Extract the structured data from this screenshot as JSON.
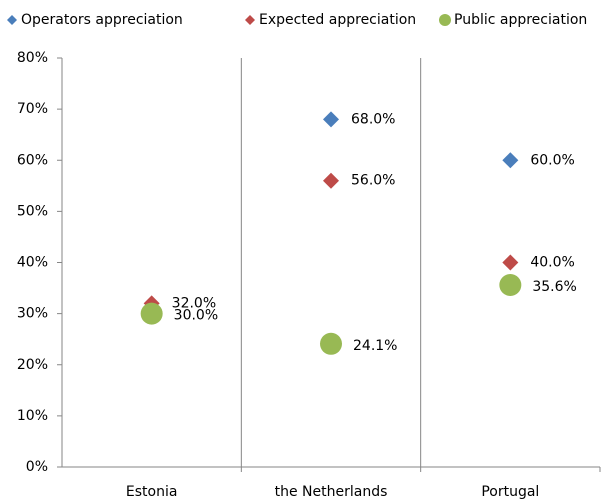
{
  "chart_data": {
    "type": "scatter",
    "categories": [
      "Estonia",
      "the Netherlands",
      "Portugal"
    ],
    "series": [
      {
        "name": "Operators appreciation",
        "color": "#4a7ebb",
        "marker": "diamond",
        "values": [
          null,
          68,
          60
        ],
        "value_labels": [
          null,
          "68.0%",
          "60.0%"
        ]
      },
      {
        "name": "Expected appreciation",
        "color": "#be4b48",
        "marker": "diamond",
        "values": [
          32,
          56,
          40
        ],
        "value_labels": [
          "32.0%",
          "56.0%",
          "40.0%"
        ]
      },
      {
        "name": "Public appreciation",
        "color": "#98b954",
        "marker": "circle",
        "values": [
          30,
          24.1,
          35.6
        ],
        "value_labels": [
          "30.0%",
          "24.1%",
          "35.6%"
        ]
      }
    ],
    "ylim": [
      0,
      80
    ],
    "yticks": [
      {
        "value": 0,
        "label": "0%"
      },
      {
        "value": 10,
        "label": "10%"
      },
      {
        "value": 20,
        "label": "20%"
      },
      {
        "value": 30,
        "label": "30%"
      },
      {
        "value": 40,
        "label": "40%"
      },
      {
        "value": 50,
        "label": "50%"
      },
      {
        "value": 60,
        "label": "60%"
      },
      {
        "value": 70,
        "label": "70%"
      },
      {
        "value": 80,
        "label": "80%"
      }
    ],
    "legend": "top"
  }
}
